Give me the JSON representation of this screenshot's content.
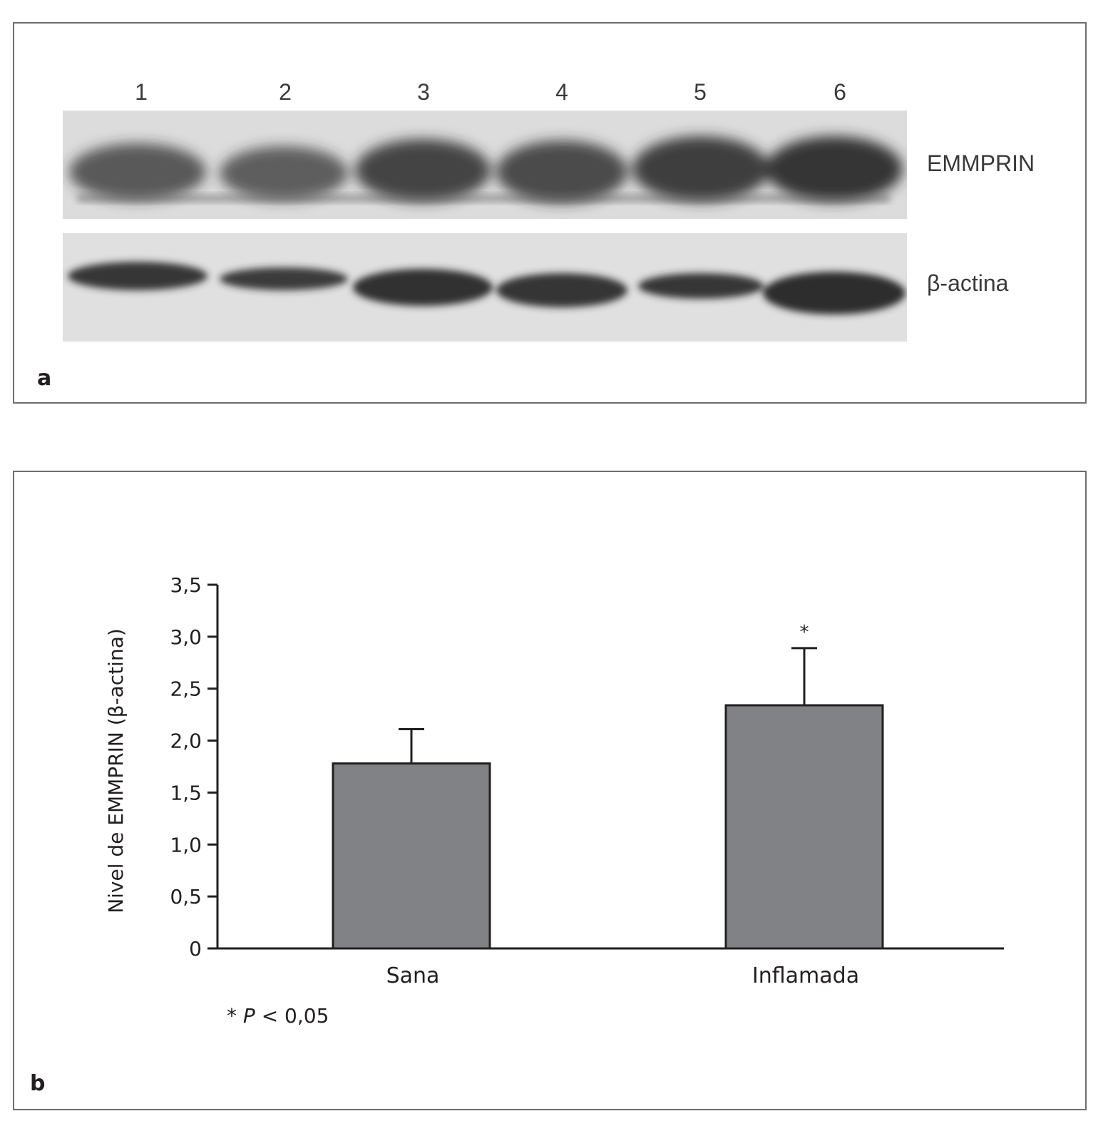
{
  "panel_a": {
    "letter": "a",
    "lanes": [
      "1",
      "2",
      "3",
      "4",
      "5",
      "6"
    ],
    "bands": {
      "emmprin_label": "EMMPRIN",
      "actin_label": "β-actina"
    }
  },
  "panel_b": {
    "letter": "b"
  },
  "chart_data": {
    "type": "bar",
    "categories": [
      "Sana",
      "Inflamada"
    ],
    "values": [
      1.78,
      2.34
    ],
    "error": [
      0.33,
      0.55
    ],
    "significance_marks": [
      "",
      "*"
    ],
    "ylabel": "Nivel de EMMPRIN (β-actina)",
    "ylim": [
      0,
      3.5
    ],
    "yticks": [
      "0",
      "0,5",
      "1,0",
      "1,5",
      "2,0",
      "2,5",
      "3,0",
      "3,5"
    ],
    "ytick_values": [
      0,
      0.5,
      1.0,
      1.5,
      2.0,
      2.5,
      3.0,
      3.5
    ],
    "footnote_star": "*",
    "footnote_p": "P",
    "footnote_rest": "< 0,05",
    "bar_color": "#808285",
    "grid": false
  }
}
